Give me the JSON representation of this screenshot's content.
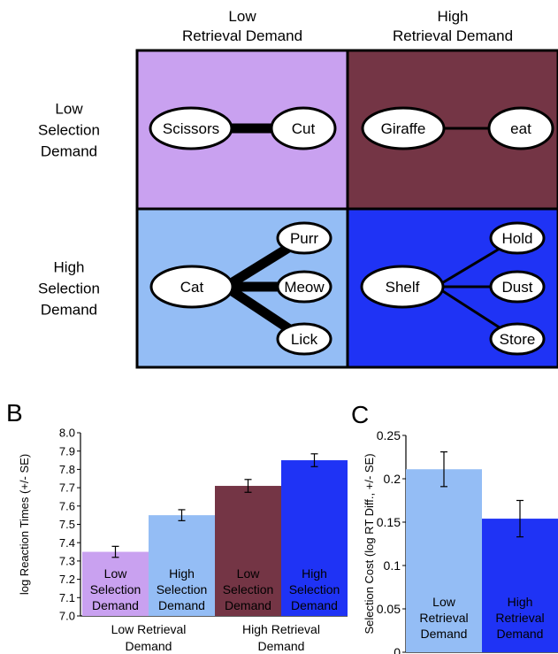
{
  "panel_a": {
    "column_headers": [
      [
        "Low",
        "Retrieval Demand"
      ],
      [
        "High",
        "Retrieval Demand"
      ]
    ],
    "row_headers": [
      [
        "Low",
        "Selection",
        "Demand"
      ],
      [
        "High",
        "Selection",
        "Demand"
      ]
    ],
    "cells": [
      {
        "color": "#c9a1f0",
        "cue": "Scissors",
        "targets": [
          "Cut"
        ],
        "association": "strong"
      },
      {
        "color": "#743545",
        "cue": "Giraffe",
        "targets": [
          "eat"
        ],
        "association": "weak"
      },
      {
        "color": "#94bdf5",
        "cue": "Cat",
        "targets": [
          "Purr",
          "Meow",
          "Lick"
        ],
        "association": "strong"
      },
      {
        "color": "#1f33f5",
        "cue": "Shelf",
        "targets": [
          "Hold",
          "Dust",
          "Store"
        ],
        "association": "weak"
      }
    ]
  },
  "chart_data": [
    {
      "panel_label": "B",
      "type": "bar",
      "ylabel": "log Reaction Times (+/- SE)",
      "ylim": [
        7.0,
        8.0
      ],
      "yticks": [
        "7.0",
        "7.1",
        "7.2",
        "7.3",
        "7.4",
        "7.5",
        "7.6",
        "7.7",
        "7.8",
        "7.9",
        "8.0"
      ],
      "group_labels": [
        [
          "Low Retrieval",
          "Demand"
        ],
        [
          "High Retrieval",
          "Demand"
        ]
      ],
      "bars": [
        {
          "group": 0,
          "label": [
            "Low",
            "Selection",
            "Demand"
          ],
          "value": 7.35,
          "error": 0.03,
          "color": "#c9a1f0"
        },
        {
          "group": 0,
          "label": [
            "High",
            "Selection",
            "Demand"
          ],
          "value": 7.55,
          "error": 0.03,
          "color": "#94bdf5"
        },
        {
          "group": 1,
          "label": [
            "Low",
            "Selection",
            "Demand"
          ],
          "value": 7.71,
          "error": 0.035,
          "color": "#743545"
        },
        {
          "group": 1,
          "label": [
            "High",
            "Selection",
            "Demand"
          ],
          "value": 7.85,
          "error": 0.035,
          "color": "#1f33f5"
        }
      ]
    },
    {
      "panel_label": "C",
      "type": "bar",
      "ylabel": "Selection Cost (log RT Diff., +/- SE)",
      "ylim": [
        0,
        0.25
      ],
      "yticks": [
        "0",
        "0.05",
        "0.1",
        "0.15",
        "0.2",
        "0.25"
      ],
      "bars": [
        {
          "label": [
            "Low",
            "Retrieval",
            "Demand"
          ],
          "value": 0.211,
          "error": 0.02,
          "color": "#94bdf5"
        },
        {
          "label": [
            "High",
            "Retrieval",
            "Demand"
          ],
          "value": 0.154,
          "error": 0.021,
          "color": "#1f33f5"
        }
      ]
    }
  ]
}
